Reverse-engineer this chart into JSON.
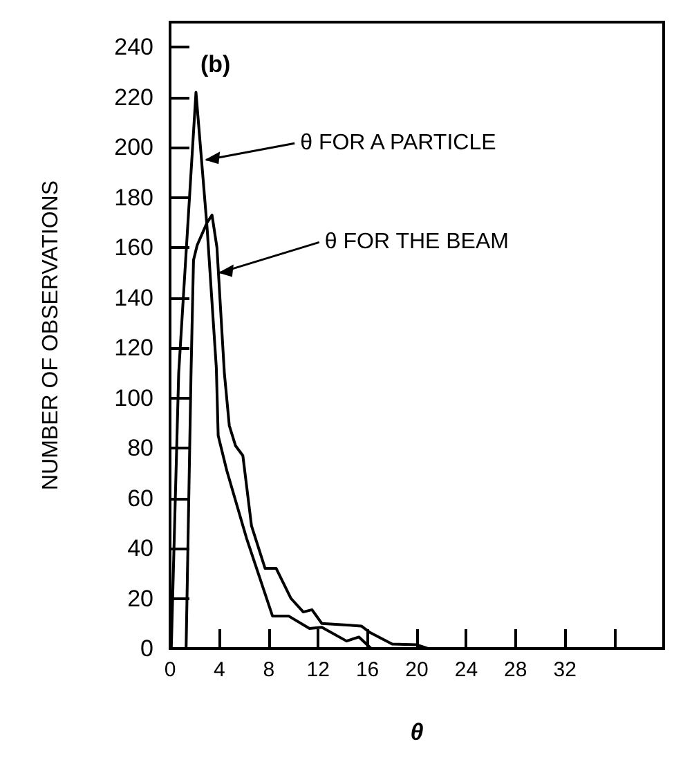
{
  "chart_data": {
    "type": "line",
    "xlabel": "θ",
    "ylabel": "NUMBER OF OBSERVATIONS",
    "xlim": [
      0,
      40
    ],
    "xticks": [
      0,
      4,
      8,
      12,
      16,
      20,
      24,
      28,
      32,
      {
        "value": 36,
        "label": null
      }
    ],
    "ylim": [
      0,
      250
    ],
    "yticks": [
      0,
      20,
      40,
      60,
      80,
      100,
      120,
      140,
      160,
      180,
      200,
      220,
      240
    ],
    "grid": false,
    "marker": "none",
    "line_style": "solid",
    "annotations": [
      "(b)",
      {
        "text": "θ FOR A PARTICLE",
        "x": 2.7,
        "y": 195
      },
      {
        "text": "θ FOR THE BEAM",
        "x": 3.8,
        "y": 150
      }
    ],
    "series": [
      {
        "color": "#000000",
        "x": [
          0.1,
          0.7,
          2.1,
          3.0,
          3.75,
          3.9,
          4.6,
          6.2,
          8.3,
          9.6,
          11.3,
          12.3,
          14.3,
          15.3,
          16.3
        ],
        "values": [
          0,
          110,
          222,
          168,
          112,
          85,
          71,
          44,
          13,
          13,
          8,
          8.5,
          3,
          4.6,
          0
        ]
      },
      {
        "color": "#000000",
        "x": [
          1.3,
          1.7,
          1.9,
          2.2,
          3.0,
          3.4,
          3.8,
          4.4,
          4.8,
          5.3,
          5.9,
          6.6,
          7.7,
          8.6,
          9.8,
          10.8,
          11.5,
          12.3,
          15.5,
          16.2,
          18,
          20,
          20.9
        ],
        "values": [
          0,
          110,
          155,
          161,
          170,
          173,
          160,
          110,
          89,
          81,
          77,
          49,
          32,
          32,
          20,
          14.6,
          15.5,
          10,
          9,
          6.4,
          1.8,
          1.5,
          0
        ]
      }
    ]
  }
}
